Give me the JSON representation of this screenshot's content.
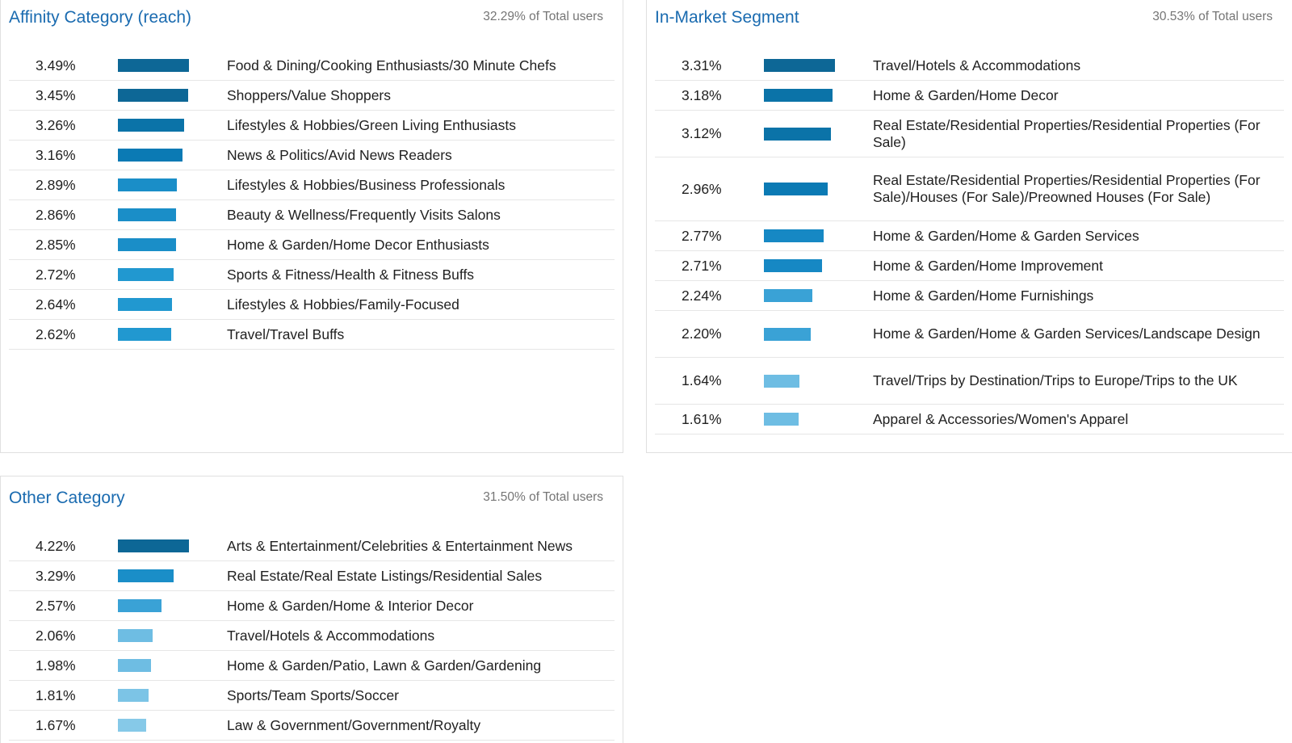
{
  "panels": [
    {
      "id": "affinity",
      "title": "Affinity Category (reach)",
      "total": "32.29% of Total users",
      "rows": [
        {
          "pct": "3.49%",
          "value": 3.49,
          "label": "Food & Dining/Cooking Enthusiasts/30 Minute Chefs",
          "color": "#0d6796"
        },
        {
          "pct": "3.45%",
          "value": 3.45,
          "label": "Shoppers/Value Shoppers",
          "color": "#0d6796"
        },
        {
          "pct": "3.26%",
          "value": 3.26,
          "label": "Lifestyles & Hobbies/Green Living Enthusiasts",
          "color": "#0b73a8"
        },
        {
          "pct": "3.16%",
          "value": 3.16,
          "label": "News & Politics/Avid News Readers",
          "color": "#0b7ab4"
        },
        {
          "pct": "2.89%",
          "value": 2.89,
          "label": "Lifestyles & Hobbies/Business Professionals",
          "color": "#1a8ec8"
        },
        {
          "pct": "2.86%",
          "value": 2.86,
          "label": "Beauty & Wellness/Frequently Visits Salons",
          "color": "#1a8ec8"
        },
        {
          "pct": "2.85%",
          "value": 2.85,
          "label": "Home & Garden/Home Decor Enthusiasts",
          "color": "#1a8ec8"
        },
        {
          "pct": "2.72%",
          "value": 2.72,
          "label": "Sports & Fitness/Health & Fitness Buffs",
          "color": "#2198d0"
        },
        {
          "pct": "2.64%",
          "value": 2.64,
          "label": "Lifestyles & Hobbies/Family-Focused",
          "color": "#2198d0"
        },
        {
          "pct": "2.62%",
          "value": 2.62,
          "label": "Travel/Travel Buffs",
          "color": "#2198d0"
        }
      ]
    },
    {
      "id": "inmarket",
      "title": "In-Market Segment",
      "total": "30.53% of Total users",
      "rows": [
        {
          "pct": "3.31%",
          "value": 3.31,
          "label": "Travel/Hotels & Accommodations",
          "color": "#0d6796"
        },
        {
          "pct": "3.18%",
          "value": 3.18,
          "label": "Home & Garden/Home Decor",
          "color": "#0b73a8"
        },
        {
          "pct": "3.12%",
          "value": 3.12,
          "label": "Real Estate/Residential Properties/Residential Properties (For Sale)",
          "color": "#0b73a8"
        },
        {
          "pct": "2.96%",
          "value": 2.96,
          "label": "Real Estate/Residential Properties/Residential Properties (For Sale)/Houses (For Sale)/Preowned Houses (For Sale)",
          "color": "#0b7ab4"
        },
        {
          "pct": "2.77%",
          "value": 2.77,
          "label": "Home & Garden/Home & Garden Services",
          "color": "#1688c4"
        },
        {
          "pct": "2.71%",
          "value": 2.71,
          "label": "Home & Garden/Home Improvement",
          "color": "#1688c4"
        },
        {
          "pct": "2.24%",
          "value": 2.24,
          "label": "Home & Garden/Home Furnishings",
          "color": "#3aa2d6"
        },
        {
          "pct": "2.20%",
          "value": 2.2,
          "label": "Home & Garden/Home & Garden Services/Landscape Design",
          "color": "#3aa2d6"
        },
        {
          "pct": "1.64%",
          "value": 1.64,
          "label": "Travel/Trips by Destination/Trips to Europe/Trips to the UK",
          "color": "#6ebde3"
        },
        {
          "pct": "1.61%",
          "value": 1.61,
          "label": "Apparel & Accessories/Women's Apparel",
          "color": "#6ebde3"
        }
      ]
    },
    {
      "id": "other",
      "title": "Other Category",
      "total": "31.50% of Total users",
      "rows": [
        {
          "pct": "4.22%",
          "value": 4.22,
          "label": "Arts & Entertainment/Celebrities & Entertainment News",
          "color": "#0d6796"
        },
        {
          "pct": "3.29%",
          "value": 3.29,
          "label": "Real Estate/Real Estate Listings/Residential Sales",
          "color": "#1a8ec8"
        },
        {
          "pct": "2.57%",
          "value": 2.57,
          "label": "Home & Garden/Home & Interior Decor",
          "color": "#3aa2d6"
        },
        {
          "pct": "2.06%",
          "value": 2.06,
          "label": "Travel/Hotels & Accommodations",
          "color": "#6ebde3"
        },
        {
          "pct": "1.98%",
          "value": 1.98,
          "label": "Home & Garden/Patio, Lawn & Garden/Gardening",
          "color": "#6ebde3"
        },
        {
          "pct": "1.81%",
          "value": 1.81,
          "label": "Sports/Team Sports/Soccer",
          "color": "#7cc4e6"
        },
        {
          "pct": "1.67%",
          "value": 1.67,
          "label": "Law & Government/Government/Royalty",
          "color": "#86c9e8"
        }
      ]
    }
  ]
}
